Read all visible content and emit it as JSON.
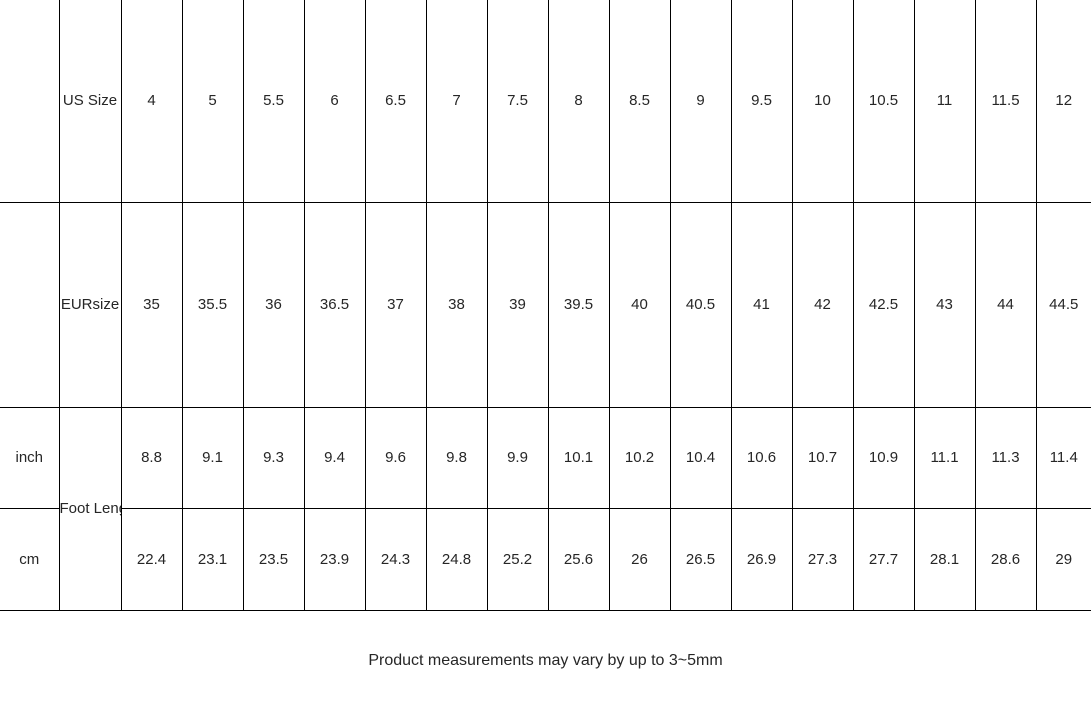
{
  "chart_data": {
    "type": "table",
    "columns_count": 16,
    "size_rows": [
      {
        "label": "US Size",
        "values": [
          "4",
          "5",
          "5.5",
          "6",
          "6.5",
          "7",
          "7.5",
          "8",
          "8.5",
          "9",
          "9.5",
          "10",
          "10.5",
          "11",
          "11.5",
          "12"
        ]
      },
      {
        "label": "EURsize",
        "values": [
          "35",
          "35.5",
          "36",
          "36.5",
          "37",
          "38",
          "39",
          "39.5",
          "40",
          "40.5",
          "41",
          "42",
          "42.5",
          "43",
          "44",
          "44.5"
        ]
      }
    ],
    "foot_length": {
      "label": "Foot Length",
      "rows": [
        {
          "unit": "inch",
          "values": [
            "8.8",
            "9.1",
            "9.3",
            "9.4",
            "9.6",
            "9.8",
            "9.9",
            "10.1",
            "10.2",
            "10.4",
            "10.6",
            "10.7",
            "10.9",
            "11.1",
            "11.3",
            "11.4"
          ]
        },
        {
          "unit": "cm",
          "values": [
            "22.4",
            "23.1",
            "23.5",
            "23.9",
            "24.3",
            "24.8",
            "25.2",
            "25.6",
            "26",
            "26.5",
            "26.9",
            "27.3",
            "27.7",
            "28.1",
            "28.6",
            "29"
          ]
        }
      ]
    }
  },
  "footer": {
    "note": "Product measurements may vary by up to 3~5mm"
  },
  "colors": {
    "border": "#000000",
    "text": "#262626",
    "background": "#ffffff"
  }
}
